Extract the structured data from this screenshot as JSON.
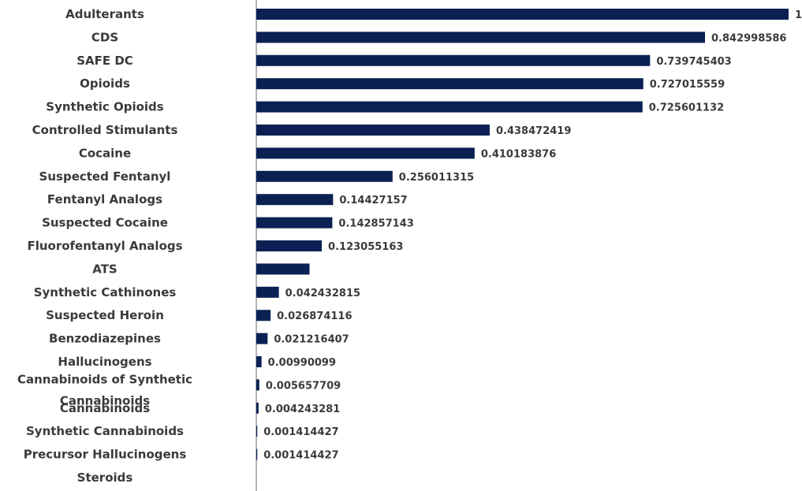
{
  "chart_data": {
    "type": "bar",
    "orientation": "horizontal",
    "title": "",
    "xlabel": "",
    "ylabel": "",
    "xlim": [
      0,
      1
    ],
    "grid": false,
    "bar_color": "#0b2154",
    "axis_color": "#9a9a9a",
    "categories": [
      "Adulterants",
      "CDS",
      "SAFE DC",
      "Opioids",
      "Synthetic Opioids",
      "Controlled Stimulants",
      "Cocaine",
      "Suspected Fentanyl",
      "Fentanyl Analogs",
      "Suspected Cocaine",
      "Fluorofentanyl Analogs",
      "ATS",
      "Synthetic Cathinones",
      "Suspected Heroin",
      "Benzodiazepines",
      "Hallucinogens",
      "Cannabinoids of Synthetic Cannabinoids",
      "Cannabinoids",
      "Synthetic Cannabinoids",
      "Precursor Hallucinogens",
      "Steroids"
    ],
    "values": [
      1,
      0.842998586,
      0.739745403,
      0.727015559,
      0.725601132,
      0.438472419,
      0.410183876,
      0.256011315,
      0.14427157,
      0.142857143,
      0.123055163,
      0.1,
      0.042432815,
      0.026874116,
      0.021216407,
      0.00990099,
      0.005657709,
      0.004243281,
      0.001414427,
      0.001414427,
      0
    ],
    "data_labels": [
      "1",
      "0.842998586",
      "0.739745403",
      "0.727015559",
      "0.725601132",
      "0.438472419",
      "0.410183876",
      "0.256011315",
      "0.14427157",
      "0.142857143",
      "0.123055163",
      "",
      "0.042432815",
      "0.026874116",
      "0.021216407",
      "0.00990099",
      "0.005657709",
      "0.004243281",
      "0.001414427",
      "0.001414427",
      ""
    ]
  }
}
